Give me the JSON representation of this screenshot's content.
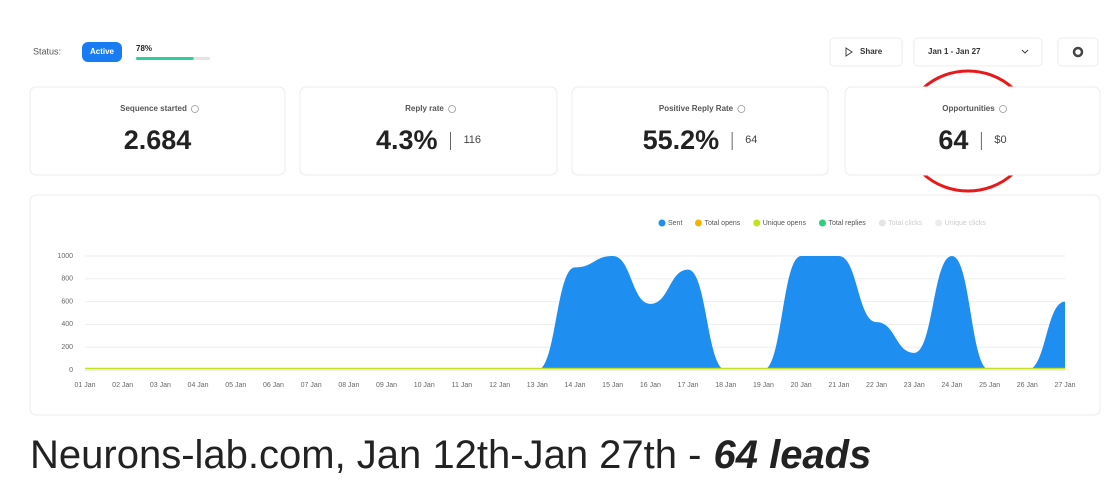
{
  "status_bar": {
    "label": "Status:",
    "status": "Active",
    "progress": {
      "value": 78,
      "label": "78%"
    },
    "share": "Share",
    "date_range": "Jan 1 - Jan 27"
  },
  "stats": [
    {
      "label": "Sequence started",
      "value": "2.684"
    },
    {
      "label": "Reply rate",
      "value": "4.3%",
      "secondary": "116"
    },
    {
      "label": "Positive Reply Rate",
      "value": "55.2%",
      "secondary": "64"
    },
    {
      "label": "Opportunities",
      "value": "64",
      "secondary": "$0"
    }
  ],
  "chart_data": {
    "type": "area",
    "categories": [
      "01 Jan",
      "02 Jan",
      "03 Jan",
      "04 Jan",
      "05 Jan",
      "06 Jan",
      "07 Jan",
      "08 Jan",
      "09 Jan",
      "10 Jan",
      "11 Jan",
      "12 Jan",
      "13 Jan",
      "14 Jan",
      "15 Jan",
      "16 Jan",
      "17 Jan",
      "18 Jan",
      "19 Jan",
      "20 Jan",
      "21 Jan",
      "22 Jan",
      "23 Jan",
      "24 Jan",
      "25 Jan",
      "26 Jan",
      "27 Jan"
    ],
    "series": [
      {
        "name": "Sent",
        "color": "#1e8ff0",
        "values": [
          0,
          0,
          0,
          0,
          0,
          0,
          0,
          0,
          0,
          0,
          0,
          0,
          0,
          900,
          1000,
          580,
          880,
          0,
          0,
          1000,
          1000,
          420,
          150,
          1000,
          0,
          0,
          600
        ]
      },
      {
        "name": "Total opens",
        "color": "#f5b400",
        "values": [
          10,
          10,
          10,
          10,
          10,
          10,
          10,
          10,
          10,
          10,
          10,
          10,
          10,
          10,
          10,
          10,
          10,
          10,
          10,
          10,
          10,
          10,
          10,
          10,
          10,
          10,
          10
        ]
      },
      {
        "name": "Unique opens",
        "color": "#c3e21c",
        "values": [
          10,
          10,
          10,
          10,
          10,
          10,
          10,
          10,
          10,
          10,
          10,
          10,
          10,
          10,
          10,
          10,
          10,
          10,
          10,
          10,
          10,
          10,
          10,
          10,
          10,
          10,
          10
        ]
      },
      {
        "name": "Total replies",
        "color": "#2ecf7c",
        "values": [
          0,
          0,
          0,
          0,
          0,
          0,
          0,
          0,
          0,
          0,
          0,
          0,
          0,
          0,
          0,
          0,
          0,
          0,
          0,
          0,
          0,
          0,
          0,
          0,
          0,
          0,
          0
        ]
      },
      {
        "name": "Total clicks",
        "color": "#e4e4e4",
        "values": [
          0,
          0,
          0,
          0,
          0,
          0,
          0,
          0,
          0,
          0,
          0,
          0,
          0,
          0,
          0,
          0,
          0,
          0,
          0,
          0,
          0,
          0,
          0,
          0,
          0,
          0,
          0
        ]
      },
      {
        "name": "Unique clicks",
        "color": "#ececec",
        "values": [
          0,
          0,
          0,
          0,
          0,
          0,
          0,
          0,
          0,
          0,
          0,
          0,
          0,
          0,
          0,
          0,
          0,
          0,
          0,
          0,
          0,
          0,
          0,
          0,
          0,
          0,
          0
        ]
      }
    ],
    "ylim": [
      0,
      1000
    ],
    "yticks": [
      0,
      200,
      400,
      600,
      800,
      1000
    ],
    "grid": true,
    "legend": "top-right"
  },
  "caption": {
    "text": "Neurons-lab.com, Jan 12th-Jan 27th -",
    "highlight": "64 leads"
  }
}
